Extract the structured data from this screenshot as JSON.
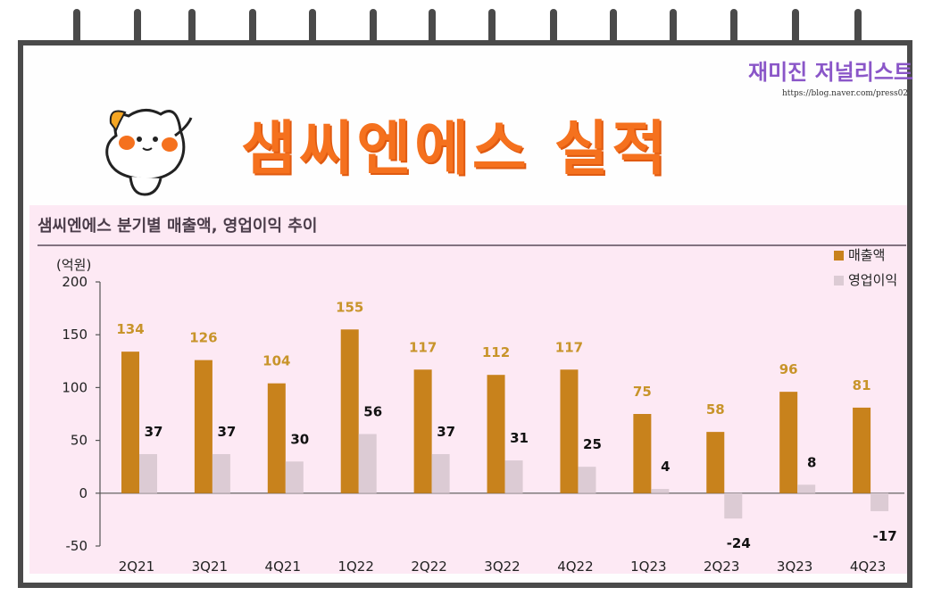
{
  "header": {
    "title": "샘씨엔에스 실적",
    "blog_brand": "재미진 저널리스트",
    "blog_url": "https://blog.naver.com/press02"
  },
  "colors": {
    "revenue": "#c8821c",
    "operating_profit": "#dccbd4",
    "title": "#f5711e",
    "panel": "#fde9f4"
  },
  "chart_data": {
    "type": "bar",
    "title": "샘씨엔에스 분기별 매출액, 영업이익 추이",
    "ylabel": "(억원)",
    "xlabel": "",
    "ylim": [
      -50,
      200
    ],
    "yticks": [
      -50,
      0,
      50,
      100,
      150,
      200
    ],
    "grid": false,
    "legend_position": "top-right",
    "categories": [
      "2Q21",
      "3Q21",
      "4Q21",
      "1Q22",
      "2Q22",
      "3Q22",
      "4Q22",
      "1Q23",
      "2Q23",
      "3Q23",
      "4Q23"
    ],
    "series": [
      {
        "name": "매출액",
        "color": "#c8821c",
        "values": [
          134,
          126,
          104,
          155,
          117,
          112,
          117,
          75,
          58,
          96,
          81
        ]
      },
      {
        "name": "영업이익",
        "color": "#dccbd4",
        "values": [
          37,
          37,
          30,
          56,
          37,
          31,
          25,
          4,
          -24,
          8,
          -17
        ]
      }
    ]
  }
}
